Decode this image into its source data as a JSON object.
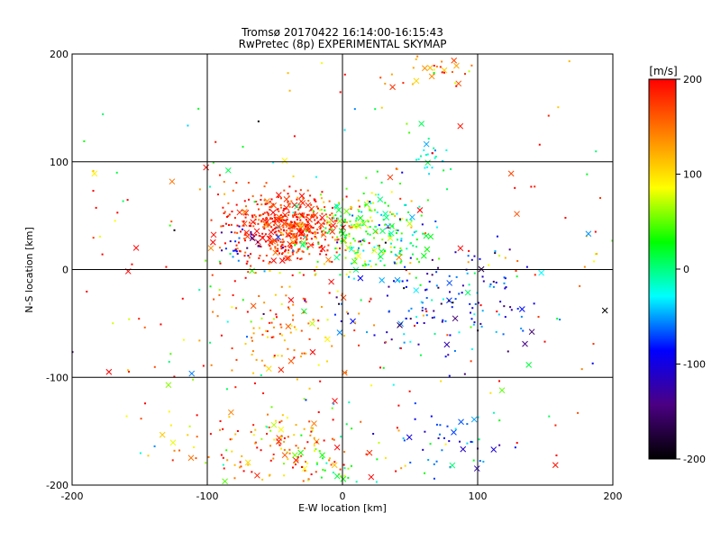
{
  "chart_data": {
    "type": "scatter",
    "title": "Tromsø 20170422 16:14:00-16:15:43",
    "subtitle": "RwPretec (8p) EXPERIMENTAL SKYMAP",
    "xlabel": "E-W location [km]",
    "ylabel": "N-S location [km]",
    "xlim": [
      -200,
      200
    ],
    "ylim": [
      -200,
      200
    ],
    "xticks": [
      "-200",
      "-100",
      "0",
      "100",
      "200"
    ],
    "yticks": [
      "-200",
      "-100",
      "0",
      "100",
      "200"
    ],
    "grid": true,
    "colorbar": {
      "label": "[m/s]",
      "range": [
        -200,
        200
      ],
      "ticks": [
        "200",
        "100",
        "0",
        "-100",
        "-200"
      ],
      "colors": [
        "#000000",
        "#4b0082",
        "#0000ff",
        "#00ffff",
        "#00ff00",
        "#ffff00",
        "#ff8000",
        "#ff0000"
      ]
    },
    "point_markers": [
      "dot",
      "x"
    ],
    "clusters": [
      {
        "x": -40,
        "y": 40,
        "sx": 22,
        "sy": 15,
        "n": 520,
        "v": 185,
        "vs": 25
      },
      {
        "x": 10,
        "y": 35,
        "sx": 18,
        "sy": 20,
        "n": 160,
        "v": 40,
        "vs": 40
      },
      {
        "x": 45,
        "y": 30,
        "sx": 15,
        "sy": 15,
        "n": 70,
        "v": 5,
        "vs": 35
      },
      {
        "x": 70,
        "y": -30,
        "sx": 35,
        "sy": 25,
        "n": 150,
        "v": -90,
        "vs": 50
      },
      {
        "x": -45,
        "y": -60,
        "sx": 25,
        "sy": 25,
        "n": 90,
        "v": 150,
        "vs": 40
      },
      {
        "x": -50,
        "y": -165,
        "sx": 40,
        "sy": 20,
        "n": 170,
        "v": 140,
        "vs": 60
      },
      {
        "x": 75,
        "y": -160,
        "sx": 20,
        "sy": 20,
        "n": 50,
        "v": -80,
        "vs": 50
      },
      {
        "x": -75,
        "y": 20,
        "sx": 10,
        "sy": 8,
        "n": 25,
        "v": -100,
        "vs": 30
      },
      {
        "x": 65,
        "y": 105,
        "sx": 8,
        "sy": 8,
        "n": 20,
        "v": -20,
        "vs": 20
      },
      {
        "x": 60,
        "y": 185,
        "sx": 20,
        "sy": 10,
        "n": 30,
        "v": 140,
        "vs": 40
      },
      {
        "x": 0,
        "y": -190,
        "sx": 15,
        "sy": 8,
        "n": 25,
        "v": 20,
        "vs": 30
      },
      {
        "x": 0,
        "y": 0,
        "sx": 120,
        "sy": 110,
        "n": 350,
        "v": 100,
        "vs": 120
      }
    ]
  }
}
